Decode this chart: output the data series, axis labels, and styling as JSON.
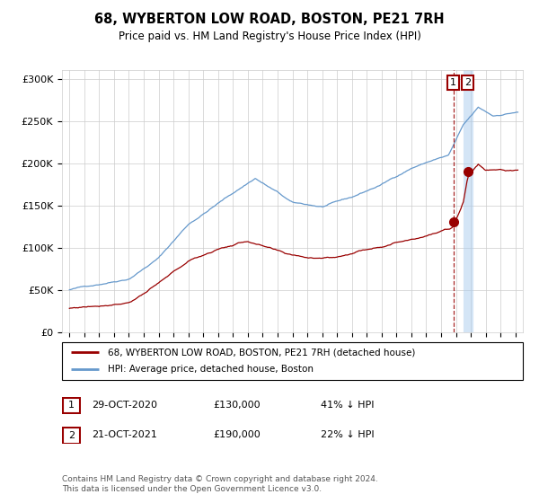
{
  "title": "68, WYBERTON LOW ROAD, BOSTON, PE21 7RH",
  "subtitle": "Price paid vs. HM Land Registry's House Price Index (HPI)",
  "legend_line1": "68, WYBERTON LOW ROAD, BOSTON, PE21 7RH (detached house)",
  "legend_line2": "HPI: Average price, detached house, Boston",
  "footnote": "Contains HM Land Registry data © Crown copyright and database right 2024.\nThis data is licensed under the Open Government Licence v3.0.",
  "table_rows": [
    {
      "num": "1",
      "date": "29-OCT-2020",
      "price": "£130,000",
      "note": "41% ↓ HPI"
    },
    {
      "num": "2",
      "date": "21-OCT-2021",
      "price": "£190,000",
      "note": "22% ↓ HPI"
    }
  ],
  "sale1_x": 2020.83,
  "sale1_y": 130000,
  "sale2_x": 2021.8,
  "sale2_y": 190000,
  "hpi_color": "#6699cc",
  "sale_color": "#990000",
  "ylim": [
    0,
    310000
  ],
  "xlim_start": 1994.5,
  "xlim_end": 2025.5,
  "yticks": [
    0,
    50000,
    100000,
    150000,
    200000,
    250000,
    300000
  ],
  "ytick_labels": [
    "£0",
    "£50K",
    "£100K",
    "£150K",
    "£200K",
    "£250K",
    "£300K"
  ]
}
